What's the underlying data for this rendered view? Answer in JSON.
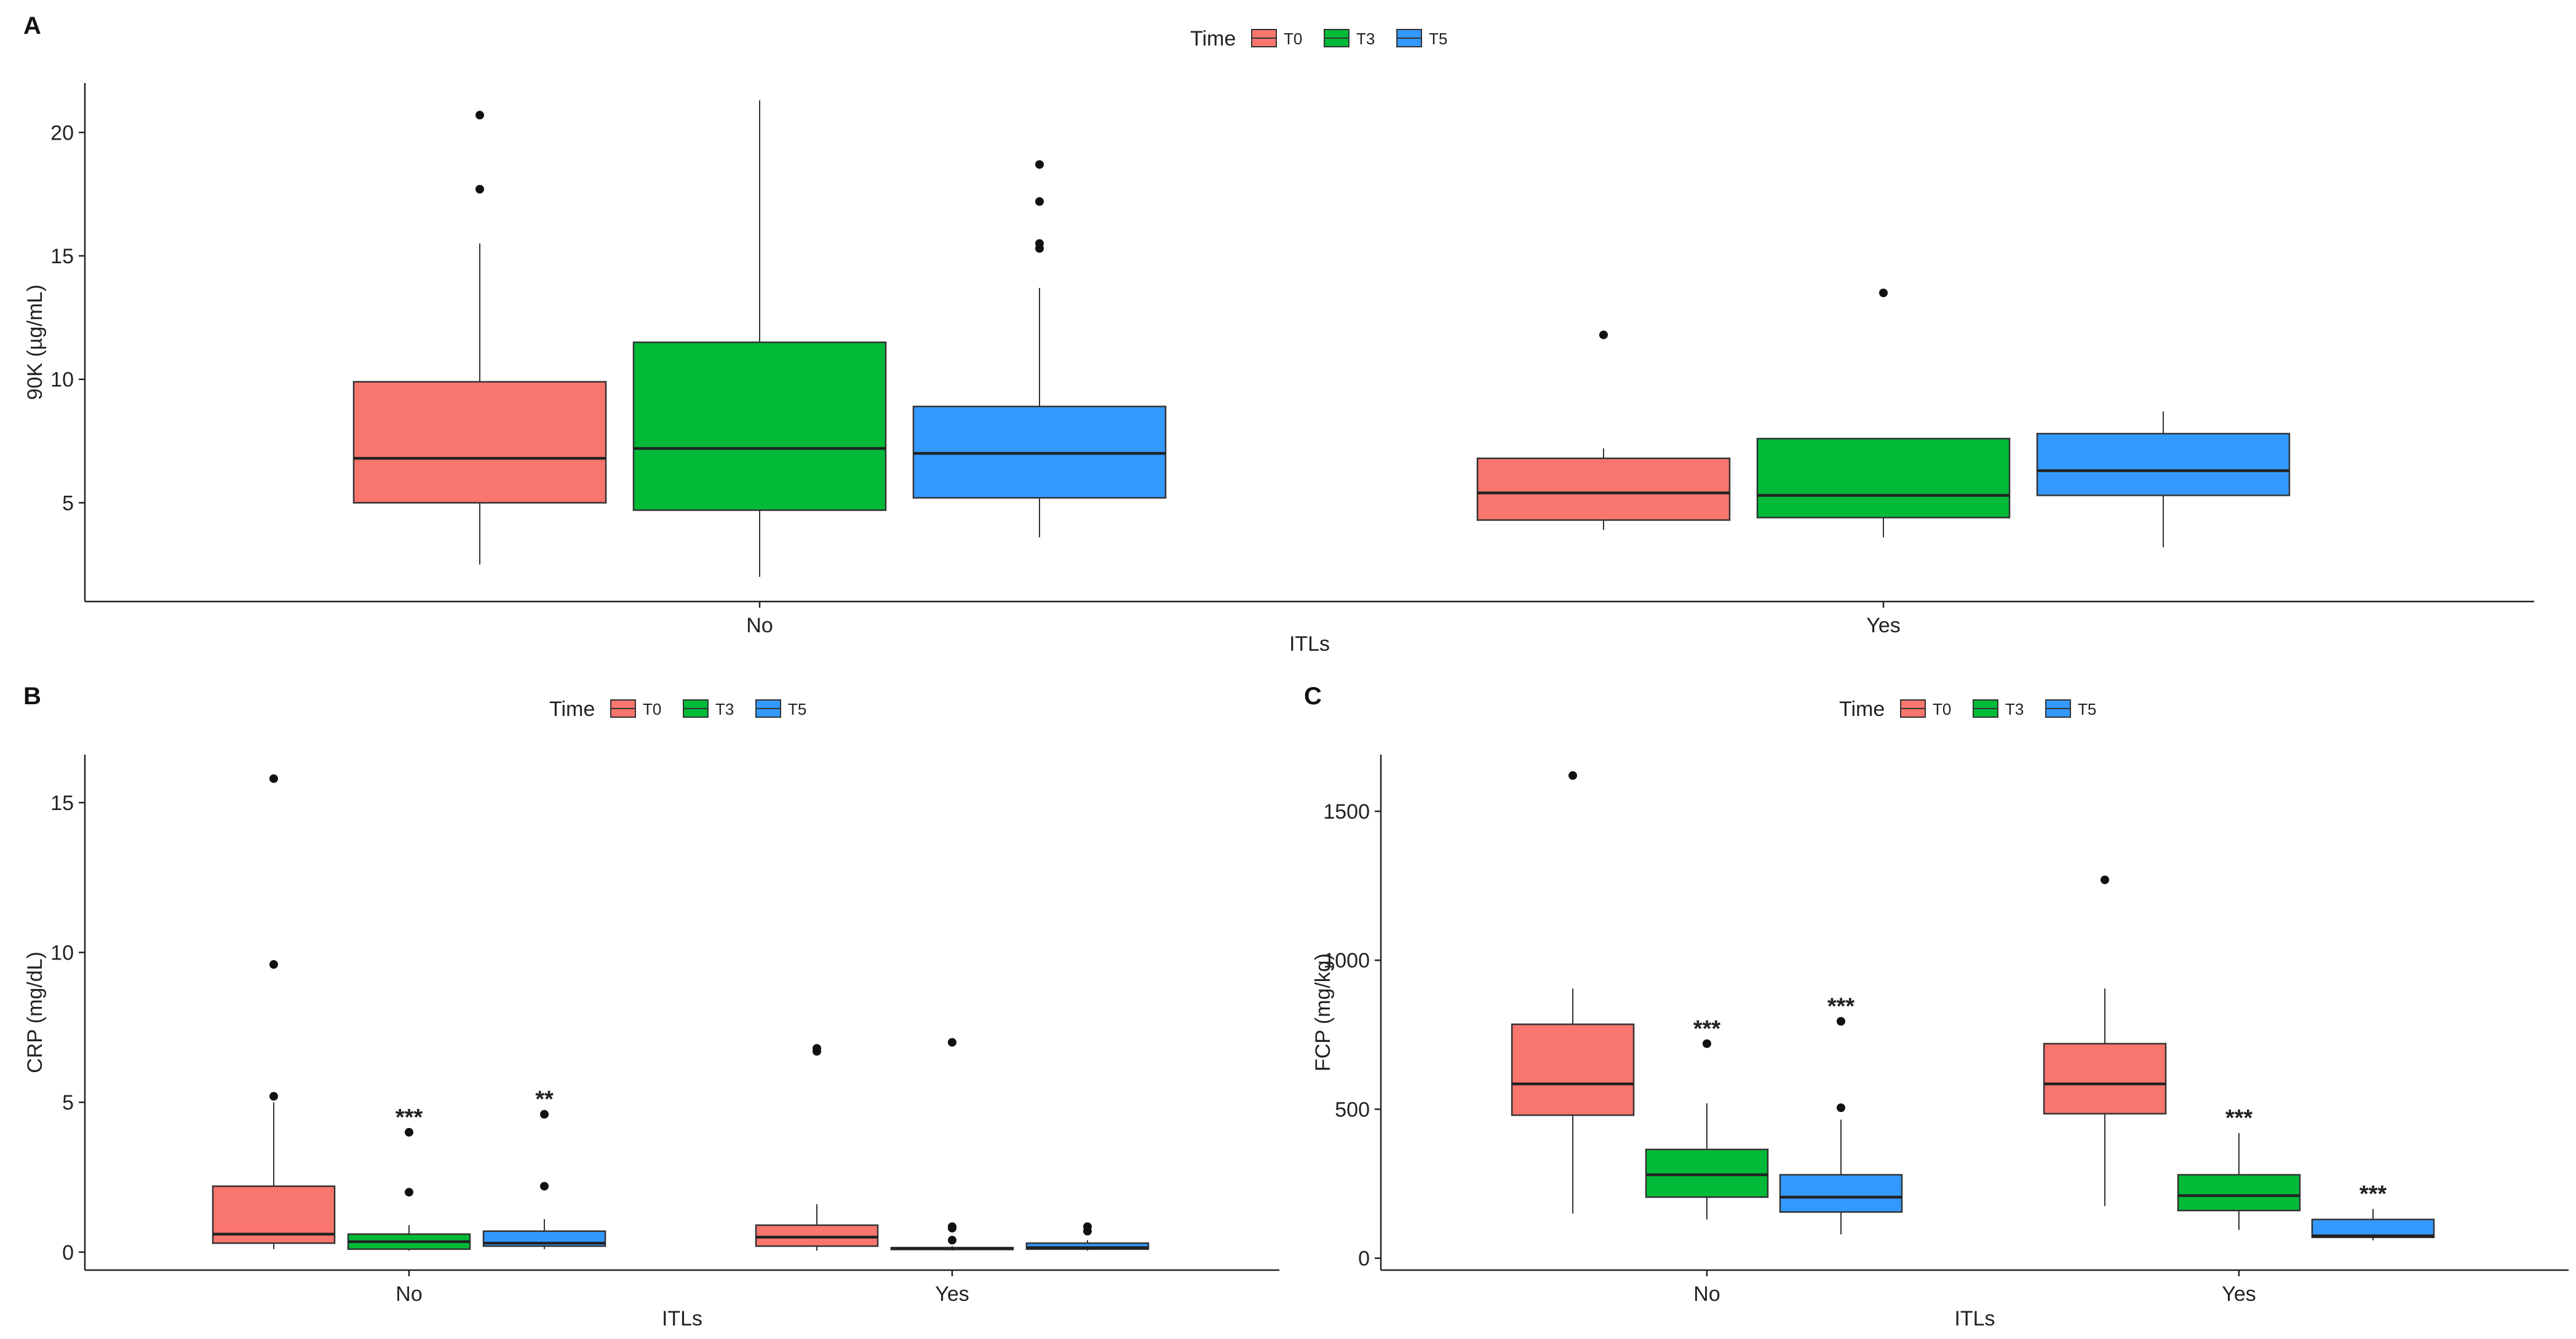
{
  "chart_data": [
    {
      "panel": "A",
      "type": "box",
      "xlabel": "ITLs",
      "ylabel": "90K (µg/mL)",
      "legend_title": "Time",
      "legend_position": "top",
      "categories": [
        "No",
        "Yes"
      ],
      "series": [
        {
          "name": "T0",
          "color": "#F8766D"
        },
        {
          "name": "T3",
          "color": "#00BA38"
        },
        {
          "name": "T5",
          "color": "#3399FF"
        }
      ],
      "ylim": [
        1.0,
        22.0
      ],
      "yticks": [
        5,
        10,
        15,
        20
      ],
      "boxes": [
        {
          "category": "No",
          "series": "T0",
          "whisker_low": 2.5,
          "q1": 5.0,
          "median": 6.8,
          "q3": 9.9,
          "whisker_high": 15.5,
          "outliers": [
            17.7,
            20.7
          ],
          "annotation": ""
        },
        {
          "category": "No",
          "series": "T3",
          "whisker_low": 2.0,
          "q1": 4.7,
          "median": 7.2,
          "q3": 11.5,
          "whisker_high": 21.3,
          "outliers": [],
          "annotation": ""
        },
        {
          "category": "No",
          "series": "T5",
          "whisker_low": 3.6,
          "q1": 5.2,
          "median": 7.0,
          "q3": 8.9,
          "whisker_high": 13.7,
          "outliers": [
            15.3,
            15.5,
            17.2,
            18.7
          ],
          "annotation": ""
        },
        {
          "category": "Yes",
          "series": "T0",
          "whisker_low": 3.9,
          "q1": 4.3,
          "median": 5.4,
          "q3": 6.8,
          "whisker_high": 7.2,
          "outliers": [
            11.8
          ],
          "annotation": ""
        },
        {
          "category": "Yes",
          "series": "T3",
          "whisker_low": 3.6,
          "q1": 4.4,
          "median": 5.3,
          "q3": 7.6,
          "whisker_high": 7.6,
          "outliers": [
            13.5
          ],
          "annotation": ""
        },
        {
          "category": "Yes",
          "series": "T5",
          "whisker_low": 3.2,
          "q1": 5.3,
          "median": 6.3,
          "q3": 7.8,
          "whisker_high": 8.7,
          "outliers": [],
          "annotation": ""
        }
      ]
    },
    {
      "panel": "B",
      "type": "box",
      "xlabel": "ITLs",
      "ylabel": "CRP (mg/dL)",
      "legend_title": "Time",
      "legend_position": "top",
      "categories": [
        "No",
        "Yes"
      ],
      "series": [
        {
          "name": "T0",
          "color": "#F8766D"
        },
        {
          "name": "T3",
          "color": "#00BA38"
        },
        {
          "name": "T5",
          "color": "#3399FF"
        }
      ],
      "ylim": [
        -0.6,
        16.6
      ],
      "yticks": [
        0,
        5,
        10,
        15
      ],
      "boxes": [
        {
          "category": "No",
          "series": "T0",
          "whisker_low": 0.1,
          "q1": 0.3,
          "median": 0.6,
          "q3": 2.2,
          "whisker_high": 5.0,
          "outliers": [
            5.2,
            9.6,
            15.8
          ],
          "annotation": ""
        },
        {
          "category": "No",
          "series": "T3",
          "whisker_low": 0.05,
          "q1": 0.1,
          "median": 0.35,
          "q3": 0.6,
          "whisker_high": 0.9,
          "outliers": [
            2.0,
            4.0
          ],
          "annotation": "***"
        },
        {
          "category": "No",
          "series": "T5",
          "whisker_low": 0.1,
          "q1": 0.2,
          "median": 0.3,
          "q3": 0.7,
          "whisker_high": 1.1,
          "outliers": [
            2.2,
            4.6
          ],
          "annotation": "**"
        },
        {
          "category": "Yes",
          "series": "T0",
          "whisker_low": 0.05,
          "q1": 0.2,
          "median": 0.5,
          "q3": 0.9,
          "whisker_high": 1.6,
          "outliers": [
            6.7,
            6.8
          ],
          "annotation": ""
        },
        {
          "category": "Yes",
          "series": "T3",
          "whisker_low": 0.05,
          "q1": 0.1,
          "median": 0.12,
          "q3": 0.15,
          "whisker_high": 0.2,
          "outliers": [
            0.4,
            0.8,
            0.85,
            7.0
          ],
          "annotation": ""
        },
        {
          "category": "Yes",
          "series": "T5",
          "whisker_low": 0.05,
          "q1": 0.1,
          "median": 0.15,
          "q3": 0.3,
          "whisker_high": 0.4,
          "outliers": [
            0.7,
            0.85
          ],
          "annotation": ""
        }
      ]
    },
    {
      "panel": "C",
      "type": "box",
      "xlabel": "ITLs",
      "ylabel": "FCP (mg/kg)",
      "legend_title": "Time",
      "legend_position": "top",
      "categories": [
        "No",
        "Yes"
      ],
      "series": [
        {
          "name": "T0",
          "color": "#F8766D"
        },
        {
          "name": "T3",
          "color": "#00BA38"
        },
        {
          "name": "T5",
          "color": "#3399FF"
        }
      ],
      "ylim": [
        -40,
        1690
      ],
      "yticks": [
        0,
        500,
        1000,
        1500
      ],
      "boxes": [
        {
          "category": "No",
          "series": "T0",
          "whisker_low": 150,
          "q1": 480,
          "median": 585,
          "q3": 785,
          "whisker_high": 905,
          "outliers": [
            1620
          ],
          "annotation": ""
        },
        {
          "category": "No",
          "series": "T3",
          "whisker_low": 130,
          "q1": 205,
          "median": 280,
          "q3": 365,
          "whisker_high": 520,
          "outliers": [
            720
          ],
          "annotation": "***"
        },
        {
          "category": "No",
          "series": "T5",
          "whisker_low": 80,
          "q1": 155,
          "median": 205,
          "q3": 280,
          "whisker_high": 465,
          "outliers": [
            505,
            795
          ],
          "annotation": "***"
        },
        {
          "category": "Yes",
          "series": "T0",
          "whisker_low": 175,
          "q1": 485,
          "median": 585,
          "q3": 720,
          "whisker_high": 905,
          "outliers": [
            1270
          ],
          "annotation": ""
        },
        {
          "category": "Yes",
          "series": "T3",
          "whisker_low": 95,
          "q1": 160,
          "median": 210,
          "q3": 280,
          "whisker_high": 420,
          "outliers": [],
          "annotation": "***"
        },
        {
          "category": "Yes",
          "series": "T5",
          "whisker_low": 60,
          "q1": 70,
          "median": 75,
          "q3": 130,
          "whisker_high": 165,
          "outliers": [],
          "annotation": "***"
        }
      ]
    }
  ]
}
